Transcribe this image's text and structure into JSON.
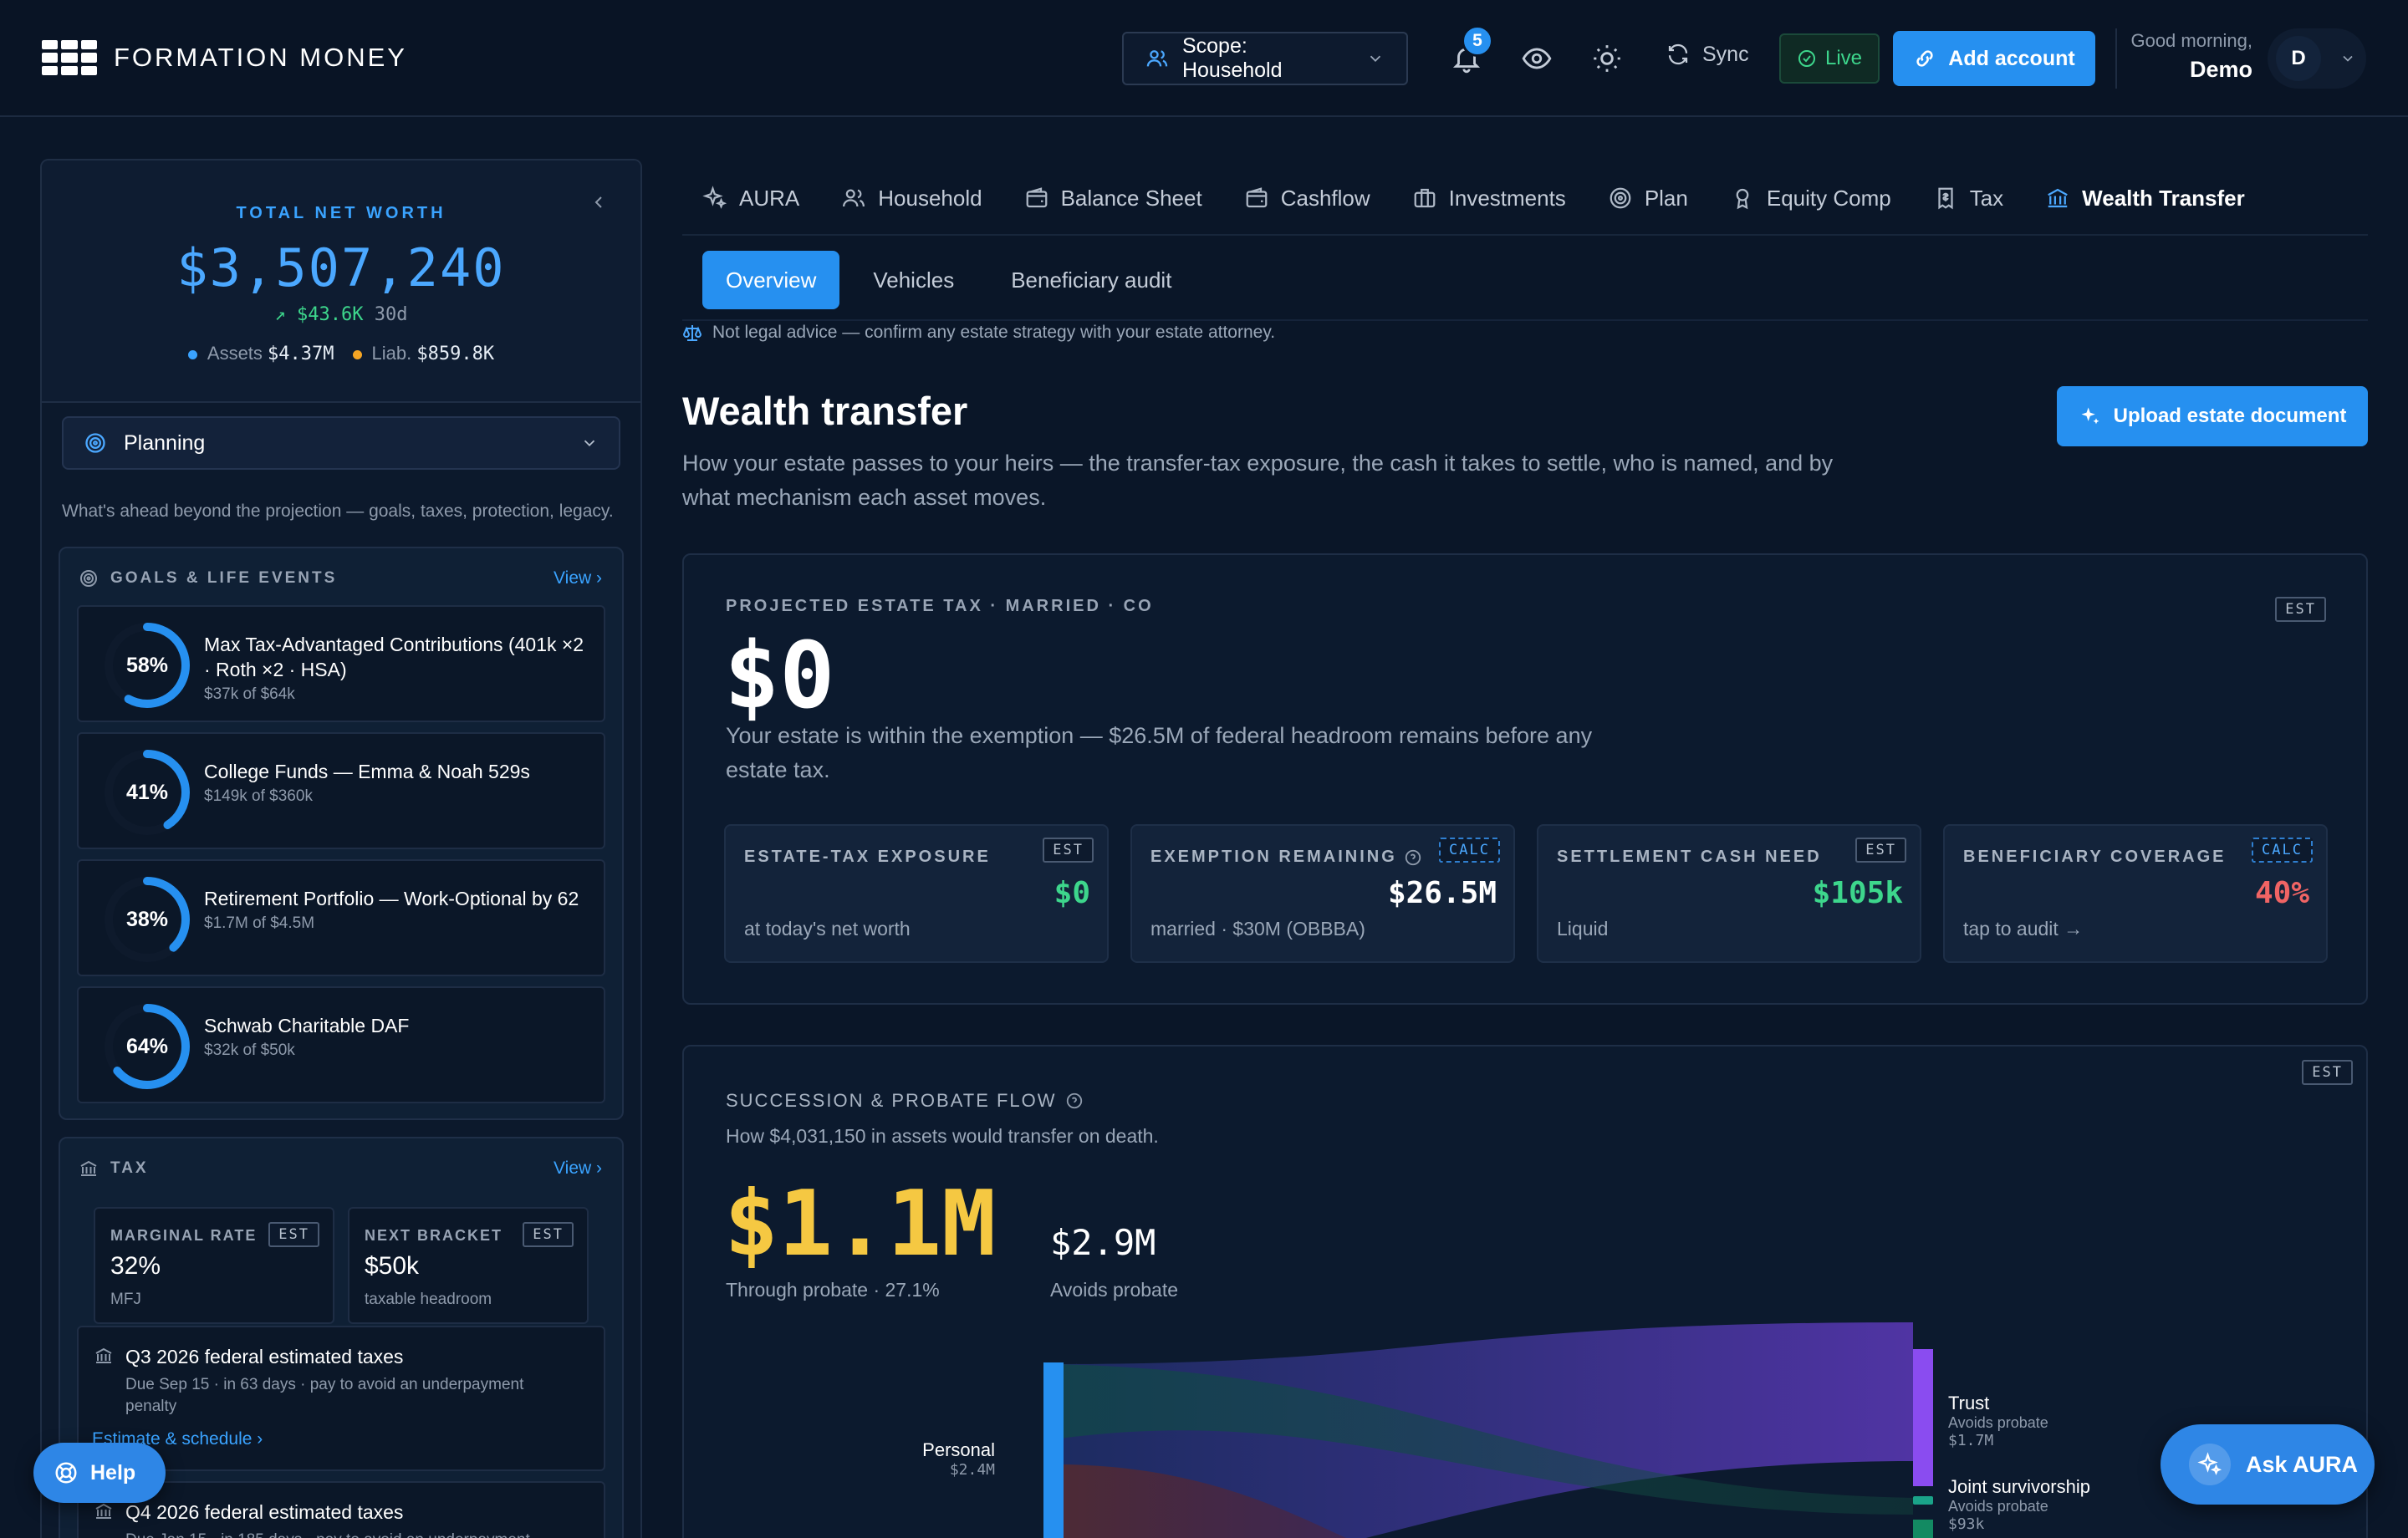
{
  "header": {
    "brand": "FORMATION MONEY",
    "scope_label": "Scope: Household",
    "notifications_count": "5",
    "sync_label": "Sync",
    "live_label": "Live",
    "add_account_label": "Add account",
    "greeting": "Good morning,",
    "user_name": "Demo",
    "avatar_initial": "D"
  },
  "sidebar": {
    "net_worth_label": "TOTAL NET WORTH",
    "net_worth_value": "$3,507,240",
    "change_value": "$43.6K",
    "change_period": "30d",
    "assets_label": "Assets",
    "assets_value": "$4.37M",
    "liab_label": "Liab.",
    "liab_value": "$859.8K",
    "planning_label": "Planning",
    "caption": "What's ahead beyond the projection — goals, taxes, protection, legacy.",
    "goals_title": "GOALS & LIFE EVENTS",
    "view_label": "View",
    "goals": [
      {
        "pct": "58%",
        "progress": 0.58,
        "title": "Max Tax-Advantaged Contributions (401k ×2 · Roth ×2 · HSA)",
        "sub": "$37k of $64k"
      },
      {
        "pct": "41%",
        "progress": 0.41,
        "title": "College Funds — Emma & Noah 529s",
        "sub": "$149k of $360k"
      },
      {
        "pct": "38%",
        "progress": 0.38,
        "title": "Retirement Portfolio — Work-Optional by 62",
        "sub": "$1.7M of $4.5M"
      },
      {
        "pct": "64%",
        "progress": 0.64,
        "title": "Schwab Charitable DAF",
        "sub": "$32k of $50k"
      }
    ],
    "tax_title": "TAX",
    "tax_view_label": "View",
    "marginal_label": "MARGINAL RATE",
    "marginal_value": "32%",
    "marginal_sub": "MFJ",
    "next_bracket_label": "NEXT BRACKET",
    "next_bracket_value": "$50k",
    "next_bracket_sub": "taxable headroom",
    "est_tag": "EST",
    "tax_items": [
      {
        "title": "Q3 2026 federal estimated taxes",
        "desc": "Due Sep 15 · in 63 days · pay to avoid an underpayment penalty",
        "link": "Estimate & schedule"
      },
      {
        "title": "Q4 2026 federal estimated taxes",
        "desc": "Due Jan 15 · in 185 days · pay to avoid an underpayment"
      }
    ]
  },
  "tabs": [
    {
      "label": "AURA",
      "icon": "sparkle-icon"
    },
    {
      "label": "Household",
      "icon": "users-icon"
    },
    {
      "label": "Balance Sheet",
      "icon": "wallet-icon"
    },
    {
      "label": "Cashflow",
      "icon": "wallet-icon"
    },
    {
      "label": "Investments",
      "icon": "briefcase-icon"
    },
    {
      "label": "Plan",
      "icon": "target-icon"
    },
    {
      "label": "Equity Comp",
      "icon": "award-icon"
    },
    {
      "label": "Tax",
      "icon": "receipt-icon"
    },
    {
      "label": "Wealth Transfer",
      "icon": "bank-icon",
      "active": true
    }
  ],
  "subtabs": [
    "Overview",
    "Vehicles",
    "Beneficiary audit"
  ],
  "disclaimer": "Not legal advice — confirm any estate strategy with your estate attorney.",
  "page": {
    "title": "Wealth transfer",
    "subtitle": "How your estate passes to your heirs — the transfer-tax exposure, the cash it takes to settle, who is named, and by what mechanism each asset moves.",
    "upload_label": "Upload estate document"
  },
  "estate": {
    "label": "PROJECTED ESTATE TAX · MARRIED · CO",
    "tag": "EST",
    "value": "$0",
    "desc": "Your estate is within the exemption — $26.5M of federal headroom remains before any estate tax.",
    "kpis": [
      {
        "label": "ESTATE-TAX EXPOSURE",
        "tag": "EST",
        "tag_style": "est",
        "value": "$0",
        "color": "#3dd68c",
        "sub": "at today's net worth"
      },
      {
        "label": "EXEMPTION REMAINING",
        "tag": "CALC",
        "tag_style": "calc",
        "value": "$26.5M",
        "color": "#ffffff",
        "sub": "married · $30M (OBBBA)",
        "help": true
      },
      {
        "label": "SETTLEMENT CASH NEED",
        "tag": "EST",
        "tag_style": "est",
        "value": "$105k",
        "color": "#3dd68c",
        "sub": "Liquid"
      },
      {
        "label": "BENEFICIARY COVERAGE",
        "tag": "CALC",
        "tag_style": "calc",
        "value": "40%",
        "color": "#f06464",
        "sub": "tap to audit →"
      }
    ]
  },
  "succession": {
    "label": "SUCCESSION & PROBATE FLOW",
    "tag": "EST",
    "sub": "How $4,031,150 in assets would transfer on death.",
    "probate_value": "$1.1M",
    "probate_sub": "Through probate · 27.1%",
    "avoids_value": "$2.9M",
    "avoids_sub": "Avoids probate",
    "source": {
      "name": "Personal",
      "value": "$2.4M"
    },
    "targets": [
      {
        "name": "Trust",
        "note": "Avoids probate",
        "value": "$1.7M"
      },
      {
        "name": "Joint survivorship",
        "note": "Avoids probate",
        "value": "$93k"
      }
    ]
  },
  "help_label": "Help",
  "ask_label": "Ask AURA"
}
